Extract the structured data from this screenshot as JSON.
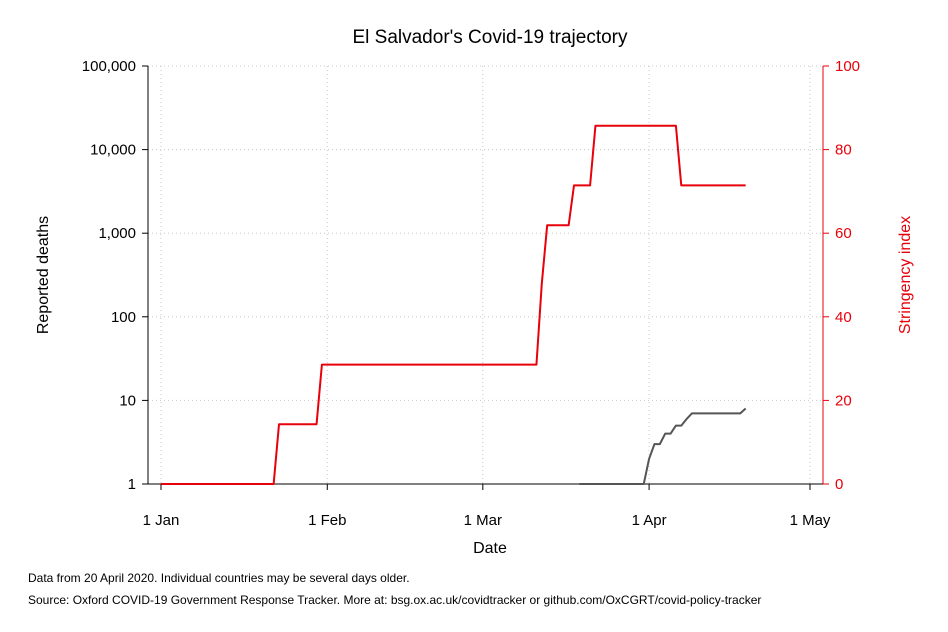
{
  "chart_data": {
    "type": "line",
    "title": "El Salvador's Covid-19 trajectory",
    "xlabel": "Date",
    "ylabel_left": "Reported deaths",
    "ylabel_right": "Stringency index",
    "x_ticks": [
      "1 Jan",
      "1 Feb",
      "1 Mar",
      "1 Apr",
      "1 May"
    ],
    "x_tick_dates": [
      "2020-01-01",
      "2020-02-01",
      "2020-03-01",
      "2020-04-01",
      "2020-05-01"
    ],
    "xlim": [
      "2020-01-01",
      "2020-05-01"
    ],
    "y_left_scale": "log",
    "y_left_ticks": [
      "1",
      "10",
      "100",
      "1,000",
      "10,000",
      "100,000"
    ],
    "y_left_tick_values": [
      1,
      10,
      100,
      1000,
      10000,
      100000
    ],
    "y_left_lim": [
      1,
      100000
    ],
    "y_right_ticks": [
      "0",
      "20",
      "40",
      "60",
      "80",
      "100"
    ],
    "y_right_tick_values": [
      0,
      20,
      40,
      60,
      80,
      100
    ],
    "y_right_lim": [
      0,
      100
    ],
    "grid": true,
    "colors": {
      "deaths": "#555555",
      "stringency": "#e8000b",
      "right_axis": "#e8000b"
    },
    "series": [
      {
        "axis": "right",
        "color": "#e8000b",
        "points": [
          [
            "2020-01-01",
            0
          ],
          [
            "2020-01-22",
            0
          ],
          [
            "2020-01-23",
            14.29
          ],
          [
            "2020-01-30",
            14.29
          ],
          [
            "2020-01-31",
            28.57
          ],
          [
            "2020-03-11",
            28.57
          ],
          [
            "2020-03-12",
            48
          ],
          [
            "2020-03-13",
            61.9
          ],
          [
            "2020-03-17",
            61.9
          ],
          [
            "2020-03-18",
            71.43
          ],
          [
            "2020-03-21",
            71.43
          ],
          [
            "2020-03-22",
            85.71
          ],
          [
            "2020-04-06",
            85.71
          ],
          [
            "2020-04-07",
            71.43
          ],
          [
            "2020-04-19",
            71.43
          ]
        ]
      },
      {
        "axis": "left",
        "color": "#555555",
        "points": [
          [
            "2020-03-19",
            1
          ],
          [
            "2020-03-31",
            1
          ],
          [
            "2020-04-01",
            2
          ],
          [
            "2020-04-02",
            3
          ],
          [
            "2020-04-03",
            3
          ],
          [
            "2020-04-04",
            4
          ],
          [
            "2020-04-05",
            4
          ],
          [
            "2020-04-06",
            5
          ],
          [
            "2020-04-07",
            5
          ],
          [
            "2020-04-08",
            6
          ],
          [
            "2020-04-09",
            7
          ],
          [
            "2020-04-18",
            7
          ],
          [
            "2020-04-19",
            8
          ]
        ]
      }
    ]
  },
  "notes": {
    "line1": "Data from 20 April 2020. Individual countries may be several days older.",
    "line2": "Source: Oxford COVID-19 Government Response Tracker. More at: bsg.ox.ac.uk/covidtracker or github.com/OxCGRT/covid-policy-tracker"
  }
}
